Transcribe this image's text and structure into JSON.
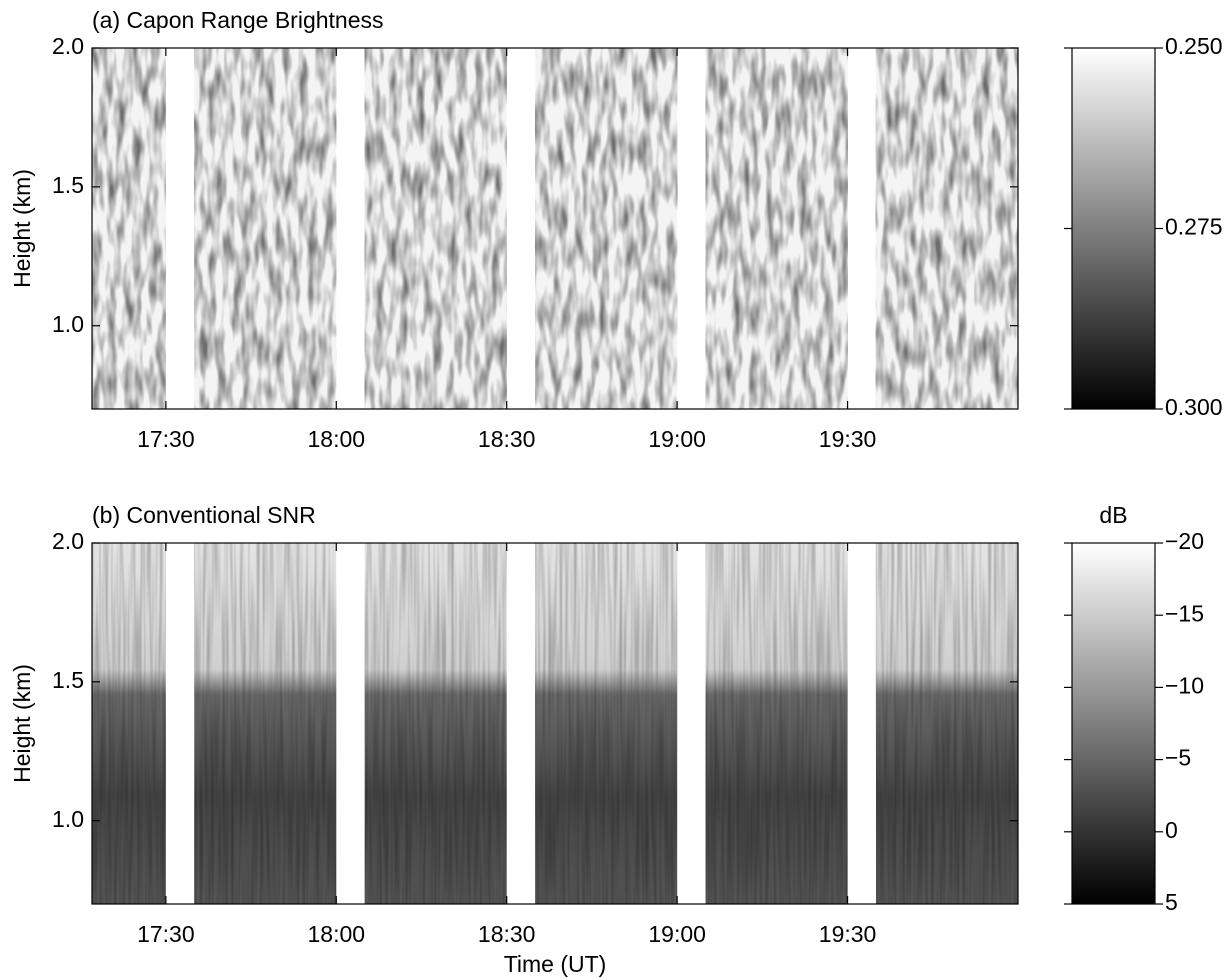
{
  "chart_data": [
    {
      "type": "heatmap",
      "title": "(a) Capon Range Brightness",
      "ylabel": "Height (km)",
      "xlim": [
        1037,
        1200
      ],
      "xticks": [
        {
          "value": 1050,
          "label": "17:30"
        },
        {
          "value": 1080,
          "label": "18:00"
        },
        {
          "value": 1110,
          "label": "18:30"
        },
        {
          "value": 1140,
          "label": "19:00"
        },
        {
          "value": 1170,
          "label": "19:30"
        }
      ],
      "ylim": [
        0.7,
        2.0
      ],
      "yticks": [
        {
          "value": 1,
          "label": "1.0"
        },
        1.5,
        {
          "value": 2,
          "label": "2.0"
        }
      ],
      "data_segments": [
        [
          1037,
          1050
        ],
        [
          1055,
          1080
        ],
        [
          1085,
          1110
        ],
        [
          1115,
          1140
        ],
        [
          1145,
          1170
        ],
        [
          1175,
          1200
        ]
      ],
      "colorbar": {
        "lim": [
          0.25,
          0.3
        ],
        "ticks": [
          {
            "value": 0.25,
            "label": "0.250"
          },
          {
            "value": 0.275,
            "label": "0.275"
          },
          {
            "value": 0.3,
            "label": "0.300"
          }
        ]
      }
    },
    {
      "type": "heatmap",
      "title": "(b) Conventional SNR",
      "ylabel": "Height (km)",
      "xlabel": "Time (UT)",
      "xlim": [
        1037,
        1200
      ],
      "xticks": [
        {
          "value": 1050,
          "label": "17:30"
        },
        {
          "value": 1080,
          "label": "18:00"
        },
        {
          "value": 1110,
          "label": "18:30"
        },
        {
          "value": 1140,
          "label": "19:00"
        },
        {
          "value": 1170,
          "label": "19:30"
        }
      ],
      "ylim": [
        0.7,
        2.0
      ],
      "yticks": [
        {
          "value": 1,
          "label": "1.0"
        },
        1.5,
        {
          "value": 2,
          "label": "2.0"
        }
      ],
      "data_segments": [
        [
          1037,
          1050
        ],
        [
          1055,
          1080
        ],
        [
          1085,
          1110
        ],
        [
          1115,
          1140
        ],
        [
          1145,
          1170
        ],
        [
          1175,
          1200
        ]
      ],
      "colorbar": {
        "label": "dB",
        "lim": [
          -20,
          5
        ],
        "ticks": [
          {
            "value": -20,
            "label": "−20"
          },
          {
            "value": -15,
            "label": "−15"
          },
          {
            "value": -10,
            "label": "−10"
          },
          {
            "value": -5,
            "label": "−5"
          },
          0,
          5
        ]
      }
    }
  ]
}
